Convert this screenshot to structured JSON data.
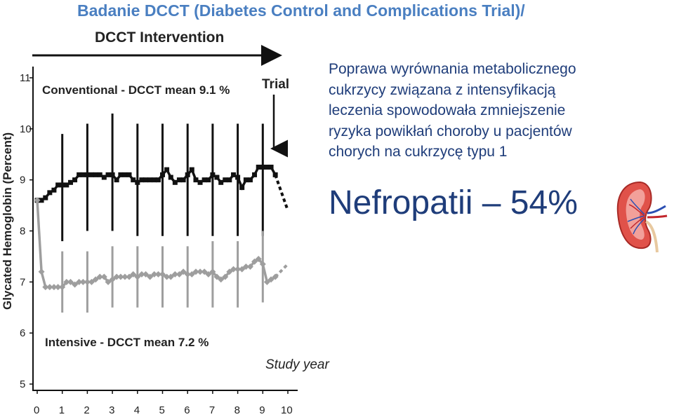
{
  "slide": {
    "title": "Badanie DCCT (Diabetes Control and Complications Trial)/",
    "body_lines": [
      "Poprawa wyrównania metabolicznego",
      "cukrzycy związana z intensyfikacją",
      "leczenia spowodowała zmniejszenie",
      "ryzyka powikłań choroby u pacjentów",
      "chorych na cukrzycę typu 1"
    ],
    "big_stat": "Nefropatii – 54%",
    "kidney_icon": "kidney-icon"
  },
  "chart_data": {
    "type": "line",
    "title": "DCCT Intervention",
    "xlabel": "Study year",
    "ylabel": "Glycated Hemoglobin (Percent)",
    "xlim": [
      0,
      10
    ],
    "ylim": [
      5,
      11
    ],
    "x_ticks": [
      "0",
      "1",
      "2",
      "3",
      "4",
      "5",
      "6",
      "7",
      "8",
      "9",
      "10"
    ],
    "y_ticks": [
      "5",
      "6",
      "7",
      "8",
      "9",
      "10",
      "11"
    ],
    "arrow_label": "Trial",
    "grid": false,
    "colors": {
      "conventional": "#111111",
      "intensive": "#9e9e9e"
    },
    "series": [
      {
        "name": "Conventional - DCCT mean 9.1 %",
        "x": [
          0,
          0.17,
          0.33,
          0.5,
          0.67,
          0.83,
          1,
          1.17,
          1.33,
          1.5,
          1.67,
          1.83,
          2,
          2.17,
          2.33,
          2.5,
          2.67,
          2.83,
          3,
          3.17,
          3.33,
          3.5,
          3.67,
          3.83,
          4,
          4.17,
          4.33,
          4.5,
          4.67,
          4.83,
          5,
          5.17,
          5.33,
          5.5,
          5.67,
          5.83,
          6,
          6.17,
          6.33,
          6.5,
          6.67,
          6.83,
          7,
          7.17,
          7.33,
          7.5,
          7.67,
          7.83,
          8,
          8.17,
          8.33,
          8.5,
          8.67,
          8.83,
          9,
          9.17,
          9.33,
          9.5
        ],
        "values": [
          8.6,
          8.6,
          8.65,
          8.75,
          8.8,
          8.9,
          8.9,
          8.9,
          8.95,
          9.0,
          9.1,
          9.1,
          9.1,
          9.1,
          9.1,
          9.1,
          9.05,
          9.1,
          9.1,
          9.0,
          9.1,
          9.1,
          9.1,
          9.0,
          8.95,
          9.0,
          9.0,
          9.0,
          9.0,
          9.0,
          9.1,
          9.2,
          9.05,
          8.95,
          9.0,
          9.0,
          9.1,
          9.2,
          9.0,
          8.95,
          9.0,
          9.0,
          9.1,
          9.05,
          8.95,
          9.0,
          9.0,
          9.1,
          9.05,
          8.85,
          9.0,
          9.0,
          9.1,
          9.25,
          9.25,
          9.25,
          9.25,
          9.1
        ],
        "extrapolated_x": [
          9.5,
          10
        ],
        "extrapolated_values": [
          9.1,
          8.4
        ],
        "error_bars": [
          {
            "x": 1,
            "low": 7.8,
            "high": 9.9
          },
          {
            "x": 2,
            "low": 8.0,
            "high": 10.1
          },
          {
            "x": 3,
            "low": 8.0,
            "high": 10.3
          },
          {
            "x": 4,
            "low": 7.9,
            "high": 10.1
          },
          {
            "x": 5,
            "low": 7.9,
            "high": 10.1
          },
          {
            "x": 6,
            "low": 7.9,
            "high": 10.1
          },
          {
            "x": 7,
            "low": 7.9,
            "high": 10.1
          },
          {
            "x": 8,
            "low": 7.9,
            "high": 10.1
          },
          {
            "x": 9,
            "low": 7.9,
            "high": 10.1
          }
        ]
      },
      {
        "name": "Intensive - DCCT mean 7.2 %",
        "x": [
          0,
          0.17,
          0.33,
          0.5,
          0.67,
          0.83,
          1,
          1.17,
          1.33,
          1.5,
          1.67,
          1.83,
          2,
          2.17,
          2.33,
          2.5,
          2.67,
          2.83,
          3,
          3.17,
          3.33,
          3.5,
          3.67,
          3.83,
          4,
          4.17,
          4.33,
          4.5,
          4.67,
          4.83,
          5,
          5.17,
          5.33,
          5.5,
          5.67,
          5.83,
          6,
          6.17,
          6.33,
          6.5,
          6.67,
          6.83,
          7,
          7.17,
          7.33,
          7.5,
          7.67,
          7.83,
          8,
          8.17,
          8.33,
          8.5,
          8.67,
          8.83,
          9,
          9.17,
          9.33,
          9.5
        ],
        "values": [
          8.6,
          7.2,
          6.9,
          6.9,
          6.9,
          6.9,
          6.9,
          7.0,
          7.0,
          6.95,
          7.0,
          7.0,
          7.0,
          7.0,
          7.05,
          7.1,
          7.1,
          7.0,
          7.05,
          7.1,
          7.1,
          7.1,
          7.1,
          7.15,
          7.1,
          7.15,
          7.15,
          7.1,
          7.15,
          7.15,
          7.15,
          7.1,
          7.1,
          7.15,
          7.15,
          7.2,
          7.15,
          7.15,
          7.2,
          7.2,
          7.2,
          7.15,
          7.2,
          7.1,
          7.05,
          7.1,
          7.2,
          7.25,
          7.25,
          7.25,
          7.3,
          7.3,
          7.4,
          7.45,
          7.35,
          7.0,
          7.05,
          7.1
        ],
        "extrapolated_x": [
          9.5,
          10
        ],
        "extrapolated_values": [
          7.1,
          7.35
        ],
        "error_bars": [
          {
            "x": 1,
            "low": 6.4,
            "high": 7.6
          },
          {
            "x": 2,
            "low": 6.4,
            "high": 7.6
          },
          {
            "x": 3,
            "low": 6.5,
            "high": 7.7
          },
          {
            "x": 4,
            "low": 6.5,
            "high": 7.7
          },
          {
            "x": 5,
            "low": 6.5,
            "high": 7.7
          },
          {
            "x": 6,
            "low": 6.5,
            "high": 7.7
          },
          {
            "x": 7,
            "low": 6.5,
            "high": 7.8
          },
          {
            "x": 8,
            "low": 6.5,
            "high": 7.8
          },
          {
            "x": 9,
            "low": 6.6,
            "high": 8.0
          }
        ]
      }
    ]
  }
}
